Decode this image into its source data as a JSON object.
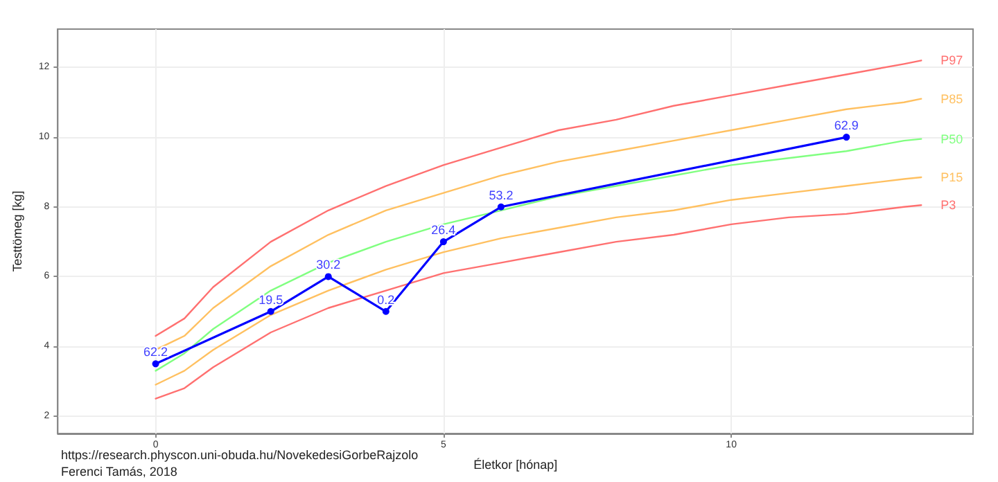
{
  "chart_data": {
    "type": "line",
    "xlabel": "Életkor [hónap]",
    "ylabel": "Testtömeg [kg]",
    "xlim": [
      -1.7,
      14.2
    ],
    "ylim": [
      1.5,
      13.1
    ],
    "xticks": [
      0,
      5,
      10
    ],
    "yticks": [
      2,
      4,
      6,
      8,
      10,
      12
    ],
    "grid": true,
    "legend": false,
    "annotations": [
      "https://research.physcon.uni-obuda.hu/NovekedesiGorbeRajzolo",
      "Ferenci Tamás, 2018",
      {
        "text": "62.2",
        "x": 0,
        "y": 3.5
      },
      {
        "text": "19.5",
        "x": 2,
        "y": 5
      },
      {
        "text": "30.2",
        "x": 3,
        "y": 6
      },
      {
        "text": "0.2",
        "x": 4,
        "y": 5
      },
      {
        "text": "26.4",
        "x": 5,
        "y": 7
      },
      {
        "text": "53.2",
        "x": 6,
        "y": 8
      },
      {
        "text": "62.9",
        "x": 12,
        "y": 10
      }
    ],
    "series": [
      {
        "name": "P97",
        "color": "#ff7070",
        "marker": "none",
        "x": [
          0,
          0.5,
          1,
          2,
          3,
          4,
          5,
          6,
          7,
          8,
          9,
          10,
          11,
          12,
          13,
          13.3
        ],
        "values": [
          4.3,
          4.8,
          5.7,
          7.0,
          7.9,
          8.6,
          9.2,
          9.7,
          10.2,
          10.5,
          10.9,
          11.2,
          11.5,
          11.8,
          12.1,
          12.2
        ]
      },
      {
        "name": "P85",
        "color": "#ffc060",
        "marker": "none",
        "x": [
          0,
          0.5,
          1,
          2,
          3,
          4,
          5,
          6,
          7,
          8,
          9,
          10,
          11,
          12,
          13,
          13.3
        ],
        "values": [
          3.9,
          4.3,
          5.1,
          6.3,
          7.2,
          7.9,
          8.4,
          8.9,
          9.3,
          9.6,
          9.9,
          10.2,
          10.5,
          10.8,
          11.0,
          11.1
        ]
      },
      {
        "name": "P50",
        "color": "#80ff80",
        "marker": "none",
        "x": [
          0,
          0.5,
          1,
          2,
          3,
          4,
          5,
          6,
          7,
          8,
          9,
          10,
          11,
          12,
          13,
          13.3
        ],
        "values": [
          3.3,
          3.8,
          4.5,
          5.6,
          6.4,
          7.0,
          7.5,
          7.9,
          8.3,
          8.6,
          8.9,
          9.2,
          9.4,
          9.6,
          9.9,
          9.95
        ]
      },
      {
        "name": "P15",
        "color": "#ffc060",
        "marker": "none",
        "x": [
          0,
          0.5,
          1,
          2,
          3,
          4,
          5,
          6,
          7,
          8,
          9,
          10,
          11,
          12,
          13,
          13.3
        ],
        "values": [
          2.9,
          3.3,
          3.9,
          4.9,
          5.6,
          6.2,
          6.7,
          7.1,
          7.4,
          7.7,
          7.9,
          8.2,
          8.4,
          8.6,
          8.8,
          8.85
        ]
      },
      {
        "name": "P3",
        "color": "#ff7070",
        "marker": "none",
        "x": [
          0,
          0.5,
          1,
          2,
          3,
          4,
          5,
          6,
          7,
          8,
          9,
          10,
          11,
          12,
          13,
          13.3
        ],
        "values": [
          2.5,
          2.8,
          3.4,
          4.4,
          5.1,
          5.6,
          6.1,
          6.4,
          6.7,
          7.0,
          7.2,
          7.5,
          7.7,
          7.8,
          8.0,
          8.05
        ]
      },
      {
        "color": "#0000ff",
        "marker": "circle",
        "x": [
          0,
          2,
          3,
          4,
          5,
          6,
          12
        ],
        "values": [
          3.5,
          5,
          6,
          5,
          7,
          8,
          10
        ]
      }
    ]
  }
}
